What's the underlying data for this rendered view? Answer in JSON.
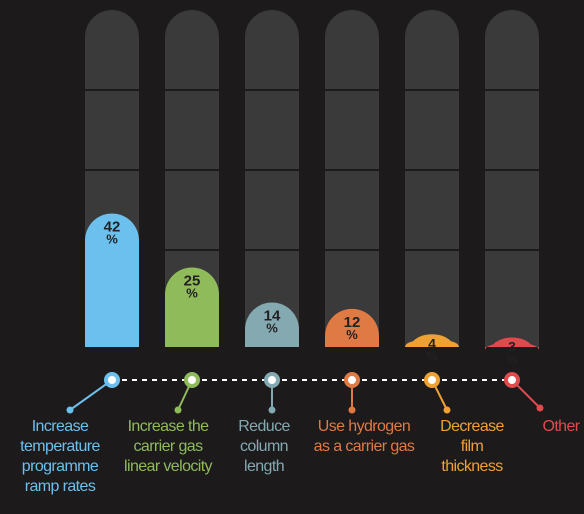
{
  "chart_data": {
    "type": "bar",
    "title": "",
    "xlabel": "",
    "ylabel": "",
    "ylim": [
      0,
      100
    ],
    "categories": [
      [
        "Increase",
        "temperature",
        "programme",
        "ramp rates"
      ],
      [
        "Increase the",
        "carrier gas",
        "linear velocity"
      ],
      [
        "Reduce",
        "column",
        "length"
      ],
      [
        "Use hydrogen",
        "as a carrier gas"
      ],
      [
        "Decrease",
        "film",
        "thickness"
      ],
      [
        "Other"
      ]
    ],
    "values": [
      42,
      25,
      14,
      12,
      4,
      3
    ],
    "value_labels": [
      "42",
      "25",
      "14",
      "12",
      "4",
      "3"
    ],
    "percent_sign": "%",
    "colors": [
      "#6cc0ee",
      "#8fbb5a",
      "#84a9b1",
      "#e07a45",
      "#efa233",
      "#e04a4d"
    ],
    "track_color": "#3a3a3a",
    "background": "#1c1a1b",
    "grid": false,
    "legend": "none"
  }
}
